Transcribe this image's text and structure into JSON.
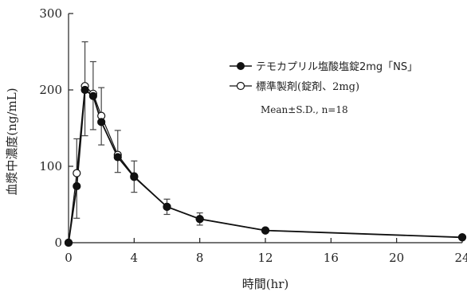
{
  "chart_data": {
    "type": "line",
    "xlabel": "時間(hr)",
    "ylabel": "血漿中濃度(ng/mL)",
    "xlim": [
      0,
      24
    ],
    "ylim": [
      0,
      300
    ],
    "x_ticks": [
      0,
      4,
      8,
      12,
      16,
      20,
      24
    ],
    "y_ticks": [
      0,
      100,
      200,
      300
    ],
    "grid": false,
    "legend_position": "upper-right",
    "annotation": "Mean±S.D., n=18",
    "series": [
      {
        "name": "テモカプリル塩酸塩錠2mg「NS」",
        "marker": "filled-circle",
        "color": "#111111",
        "x": [
          0,
          0.5,
          1,
          1.5,
          2,
          3,
          4,
          6,
          8,
          12,
          24
        ],
        "y": [
          0,
          74,
          200,
          192,
          158,
          112,
          86,
          47,
          31,
          16,
          7
        ],
        "sd": [
          0,
          42,
          60,
          44,
          30,
          20,
          20,
          10,
          8,
          0,
          0
        ]
      },
      {
        "name": "標準製剤(錠剤、2mg)",
        "marker": "open-circle",
        "color": "#111111",
        "x": [
          0,
          0.5,
          1,
          1.5,
          2,
          3,
          4,
          6,
          8,
          12,
          24
        ],
        "y": [
          0,
          91,
          205,
          195,
          166,
          115,
          87,
          47,
          31,
          16,
          7
        ],
        "sd": [
          0,
          45,
          58,
          42,
          37,
          32,
          20,
          10,
          8,
          0,
          0
        ]
      }
    ]
  }
}
